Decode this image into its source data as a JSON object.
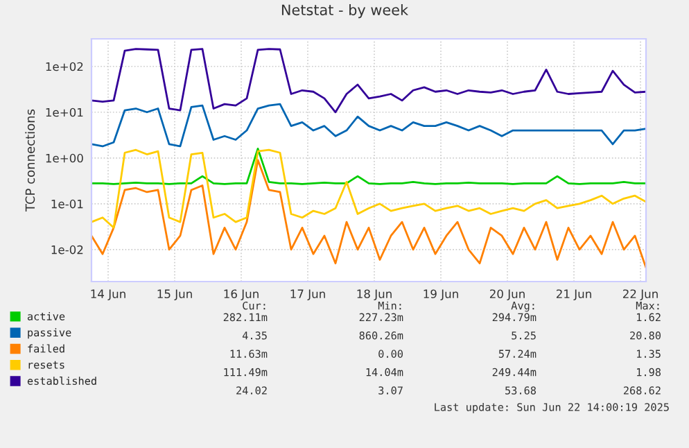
{
  "chart_data": {
    "type": "line",
    "title": "Netstat - by week",
    "ylabel": "TCP connections",
    "log": "y",
    "x": [
      "2025-06-14T06:00",
      "2025-06-14T10:00",
      "2025-06-14T14:00",
      "2025-06-14T18:00",
      "2025-06-14T22:00",
      "2025-06-15T02:00",
      "2025-06-15T06:00",
      "2025-06-15T10:00",
      "2025-06-15T14:00",
      "2025-06-15T18:00",
      "2025-06-15T22:00",
      "2025-06-16T02:00",
      "2025-06-16T06:00",
      "2025-06-16T10:00",
      "2025-06-16T14:00",
      "2025-06-16T18:00",
      "2025-06-16T22:00",
      "2025-06-17T02:00",
      "2025-06-17T06:00",
      "2025-06-17T10:00",
      "2025-06-17T14:00",
      "2025-06-17T18:00",
      "2025-06-17T22:00",
      "2025-06-18T02:00",
      "2025-06-18T06:00",
      "2025-06-18T10:00",
      "2025-06-18T14:00",
      "2025-06-18T18:00",
      "2025-06-18T22:00",
      "2025-06-19T02:00",
      "2025-06-19T06:00",
      "2025-06-19T10:00",
      "2025-06-19T14:00",
      "2025-06-19T18:00",
      "2025-06-19T22:00",
      "2025-06-20T02:00",
      "2025-06-20T06:00",
      "2025-06-20T10:00",
      "2025-06-20T14:00",
      "2025-06-20T18:00",
      "2025-06-20T22:00",
      "2025-06-21T02:00",
      "2025-06-21T06:00",
      "2025-06-21T10:00",
      "2025-06-21T14:00",
      "2025-06-21T18:00",
      "2025-06-21T22:00",
      "2025-06-22T02:00",
      "2025-06-22T06:00",
      "2025-06-22T10:00",
      "2025-06-22T14:00"
    ],
    "series": [
      {
        "name": "active",
        "color": "#00cc00",
        "values": [
          0.28,
          0.28,
          0.27,
          0.28,
          0.29,
          0.28,
          0.28,
          0.27,
          0.28,
          0.28,
          0.4,
          0.28,
          0.27,
          0.28,
          0.28,
          1.6,
          0.3,
          0.28,
          0.28,
          0.27,
          0.28,
          0.29,
          0.28,
          0.28,
          0.4,
          0.28,
          0.27,
          0.28,
          0.28,
          0.3,
          0.28,
          0.27,
          0.28,
          0.28,
          0.29,
          0.28,
          0.28,
          0.28,
          0.27,
          0.28,
          0.28,
          0.28,
          0.4,
          0.28,
          0.27,
          0.28,
          0.28,
          0.28,
          0.3,
          0.28,
          0.28
        ]
      },
      {
        "name": "passive",
        "color": "#0066b3",
        "values": [
          2,
          1.8,
          2.2,
          11,
          12,
          10,
          12,
          2,
          1.8,
          13,
          14,
          2.5,
          3,
          2.5,
          4,
          12,
          14,
          15,
          5,
          6,
          4,
          5,
          3,
          4,
          8,
          5,
          4,
          5,
          4,
          6,
          5,
          5,
          6,
          5,
          4,
          5,
          4,
          3,
          4,
          4,
          4,
          4,
          4,
          4,
          4,
          4,
          4,
          2,
          4,
          4,
          4.35
        ]
      },
      {
        "name": "failed",
        "color": "#ff8000",
        "values": [
          0.02,
          0.008,
          0.03,
          0.2,
          0.22,
          0.18,
          0.2,
          0.01,
          0.02,
          0.2,
          0.25,
          0.008,
          0.03,
          0.01,
          0.04,
          0.9,
          0.2,
          0.18,
          0.01,
          0.03,
          0.008,
          0.02,
          0.005,
          0.04,
          0.01,
          0.03,
          0.006,
          0.02,
          0.04,
          0.01,
          0.03,
          0.008,
          0.02,
          0.04,
          0.01,
          0.005,
          0.03,
          0.02,
          0.008,
          0.03,
          0.01,
          0.04,
          0.006,
          0.03,
          0.01,
          0.02,
          0.008,
          0.04,
          0.01,
          0.02,
          0.004
        ]
      },
      {
        "name": "resets",
        "color": "#ffcc00",
        "values": [
          0.04,
          0.05,
          0.03,
          1.3,
          1.5,
          1.2,
          1.4,
          0.05,
          0.04,
          1.2,
          1.3,
          0.05,
          0.06,
          0.04,
          0.05,
          1.4,
          1.5,
          1.3,
          0.06,
          0.05,
          0.07,
          0.06,
          0.08,
          0.3,
          0.06,
          0.08,
          0.1,
          0.07,
          0.08,
          0.09,
          0.1,
          0.07,
          0.08,
          0.09,
          0.07,
          0.08,
          0.06,
          0.07,
          0.08,
          0.07,
          0.1,
          0.12,
          0.08,
          0.09,
          0.1,
          0.12,
          0.15,
          0.1,
          0.13,
          0.15,
          0.11
        ]
      },
      {
        "name": "established",
        "color": "#330099",
        "values": [
          18,
          17,
          18,
          220,
          240,
          235,
          230,
          12,
          11,
          230,
          240,
          12,
          15,
          14,
          20,
          230,
          240,
          235,
          25,
          30,
          28,
          20,
          10,
          25,
          40,
          20,
          22,
          25,
          18,
          30,
          35,
          28,
          30,
          25,
          30,
          28,
          27,
          30,
          25,
          28,
          30,
          85,
          28,
          25,
          26,
          27,
          28,
          80,
          40,
          27,
          28
        ]
      }
    ],
    "xlim": [
      "2025-06-14T06:00",
      "2025-06-22T14:00"
    ],
    "xticks": [
      {
        "value": "2025-06-14T12:00",
        "label": "14 Jun"
      },
      {
        "value": "2025-06-15T12:00",
        "label": "15 Jun"
      },
      {
        "value": "2025-06-16T12:00",
        "label": "16 Jun"
      },
      {
        "value": "2025-06-17T12:00",
        "label": "17 Jun"
      },
      {
        "value": "2025-06-18T12:00",
        "label": "18 Jun"
      },
      {
        "value": "2025-06-19T12:00",
        "label": "19 Jun"
      },
      {
        "value": "2025-06-20T12:00",
        "label": "20 Jun"
      },
      {
        "value": "2025-06-21T12:00",
        "label": "21 Jun"
      },
      {
        "value": "2025-06-22T12:00",
        "label": "22 Jun"
      }
    ],
    "ylim": [
      0.002,
      400
    ],
    "yticks": [
      {
        "value": 0.01,
        "label": "1e-02"
      },
      {
        "value": 0.1,
        "label": "1e-01"
      },
      {
        "value": 1,
        "label": "1e+00"
      },
      {
        "value": 10,
        "label": "1e+01"
      },
      {
        "value": 100,
        "label": "1e+02"
      }
    ],
    "grid": true,
    "legend": "bottom",
    "line_style": "solid",
    "marker": "none",
    "annotations": [
      "Cur:",
      "Min:",
      "Avg:",
      "Max:",
      "282.11m",
      "227.23m",
      "294.79m",
      "1.62",
      "4.35",
      "860.26m",
      "5.25",
      "20.80",
      "11.63m",
      "0.00",
      "57.24m",
      "1.35",
      "111.49m",
      "14.04m",
      "249.44m",
      "1.98",
      "24.02",
      "3.07",
      "53.68",
      "268.62",
      "Last update: Sun Jun 22 14:00:19 2025"
    ]
  }
}
